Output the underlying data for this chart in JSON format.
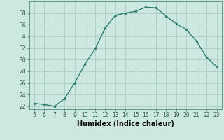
{
  "x": [
    5,
    6,
    7,
    8,
    9,
    10,
    11,
    12,
    13,
    14,
    15,
    16,
    17,
    18,
    19,
    20,
    21,
    22,
    23
  ],
  "y": [
    22.5,
    22.3,
    22.0,
    23.3,
    26.0,
    29.2,
    31.8,
    35.4,
    37.6,
    38.0,
    38.3,
    39.0,
    38.9,
    37.5,
    36.2,
    35.2,
    33.2,
    30.4,
    28.8
  ],
  "line_color": "#2d7d6f",
  "marker": "o",
  "marker_size": 2.0,
  "bg_color": "#cce8e0",
  "grid_color": "#aacfc8",
  "xlabel": "Humidex (Indice chaleur)",
  "xlim": [
    4.5,
    23.5
  ],
  "ylim": [
    21.5,
    40
  ],
  "xticks": [
    5,
    6,
    7,
    8,
    9,
    10,
    11,
    12,
    13,
    14,
    15,
    16,
    17,
    18,
    19,
    20,
    21,
    22,
    23
  ],
  "yticks": [
    22,
    24,
    26,
    28,
    30,
    32,
    34,
    36,
    38
  ],
  "tick_fontsize": 5.5,
  "label_fontsize": 7.0,
  "line_width": 1.0
}
